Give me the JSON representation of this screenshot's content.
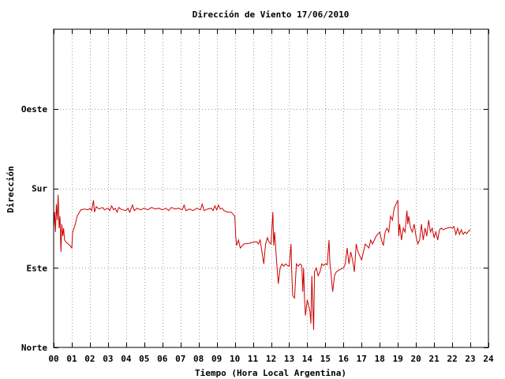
{
  "chart_data": {
    "type": "line",
    "title": "Dirección de Viento 17/06/2010",
    "xlabel": "Tiempo (Hora Local Argentina)",
    "ylabel": "Dirección",
    "xlim": [
      0,
      24
    ],
    "ylim": [
      0,
      4
    ],
    "grid": true,
    "x_ticks": [
      {
        "value": 0,
        "label": "00"
      },
      {
        "value": 1,
        "label": "01"
      },
      {
        "value": 2,
        "label": "02"
      },
      {
        "value": 3,
        "label": "03"
      },
      {
        "value": 4,
        "label": "04"
      },
      {
        "value": 5,
        "label": "05"
      },
      {
        "value": 6,
        "label": "06"
      },
      {
        "value": 7,
        "label": "07"
      },
      {
        "value": 8,
        "label": "08"
      },
      {
        "value": 9,
        "label": "09"
      },
      {
        "value": 10,
        "label": "10"
      },
      {
        "value": 11,
        "label": "11"
      },
      {
        "value": 12,
        "label": "12"
      },
      {
        "value": 13,
        "label": "13"
      },
      {
        "value": 14,
        "label": "14"
      },
      {
        "value": 15,
        "label": "15"
      },
      {
        "value": 16,
        "label": "16"
      },
      {
        "value": 17,
        "label": "17"
      },
      {
        "value": 18,
        "label": "18"
      },
      {
        "value": 19,
        "label": "19"
      },
      {
        "value": 20,
        "label": "20"
      },
      {
        "value": 21,
        "label": "21"
      },
      {
        "value": 22,
        "label": "22"
      },
      {
        "value": 23,
        "label": "23"
      },
      {
        "value": 24,
        "label": "24"
      }
    ],
    "y_ticks": [
      {
        "value": 0,
        "label": "Norte"
      },
      {
        "value": 1,
        "label": "Este"
      },
      {
        "value": 2,
        "label": "Sur"
      },
      {
        "value": 3,
        "label": "Oeste"
      }
    ],
    "series": [
      {
        "color": "#cc0000",
        "points": [
          [
            0.0,
            1.5
          ],
          [
            0.05,
            1.7
          ],
          [
            0.1,
            1.45
          ],
          [
            0.15,
            1.8
          ],
          [
            0.2,
            1.6
          ],
          [
            0.25,
            1.92
          ],
          [
            0.3,
            1.5
          ],
          [
            0.35,
            1.65
          ],
          [
            0.4,
            1.2
          ],
          [
            0.45,
            1.55
          ],
          [
            0.5,
            1.4
          ],
          [
            0.55,
            1.5
          ],
          [
            0.6,
            1.35
          ],
          [
            0.7,
            1.32
          ],
          [
            0.8,
            1.3
          ],
          [
            0.9,
            1.28
          ],
          [
            1.0,
            1.25
          ],
          [
            1.05,
            1.45
          ],
          [
            1.2,
            1.55
          ],
          [
            1.3,
            1.65
          ],
          [
            1.5,
            1.73
          ],
          [
            1.7,
            1.74
          ],
          [
            1.9,
            1.73
          ],
          [
            2.0,
            1.75
          ],
          [
            2.1,
            1.72
          ],
          [
            2.2,
            1.85
          ],
          [
            2.25,
            1.7
          ],
          [
            2.35,
            1.77
          ],
          [
            2.5,
            1.74
          ],
          [
            2.7,
            1.76
          ],
          [
            2.8,
            1.73
          ],
          [
            3.0,
            1.75
          ],
          [
            3.1,
            1.72
          ],
          [
            3.2,
            1.78
          ],
          [
            3.3,
            1.73
          ],
          [
            3.4,
            1.75
          ],
          [
            3.5,
            1.7
          ],
          [
            3.6,
            1.76
          ],
          [
            3.7,
            1.74
          ],
          [
            3.8,
            1.73
          ],
          [
            4.0,
            1.72
          ],
          [
            4.1,
            1.75
          ],
          [
            4.2,
            1.7
          ],
          [
            4.35,
            1.79
          ],
          [
            4.45,
            1.72
          ],
          [
            4.6,
            1.75
          ],
          [
            4.8,
            1.73
          ],
          [
            5.0,
            1.75
          ],
          [
            5.2,
            1.73
          ],
          [
            5.4,
            1.76
          ],
          [
            5.6,
            1.74
          ],
          [
            5.8,
            1.75
          ],
          [
            6.0,
            1.73
          ],
          [
            6.2,
            1.75
          ],
          [
            6.35,
            1.72
          ],
          [
            6.5,
            1.76
          ],
          [
            6.7,
            1.74
          ],
          [
            6.9,
            1.75
          ],
          [
            7.1,
            1.73
          ],
          [
            7.2,
            1.79
          ],
          [
            7.3,
            1.72
          ],
          [
            7.5,
            1.74
          ],
          [
            7.7,
            1.72
          ],
          [
            7.9,
            1.75
          ],
          [
            8.1,
            1.73
          ],
          [
            8.2,
            1.8
          ],
          [
            8.3,
            1.72
          ],
          [
            8.5,
            1.74
          ],
          [
            8.7,
            1.75
          ],
          [
            8.8,
            1.72
          ],
          [
            8.9,
            1.78
          ],
          [
            9.0,
            1.73
          ],
          [
            9.1,
            1.79
          ],
          [
            9.2,
            1.74
          ],
          [
            9.3,
            1.75
          ],
          [
            9.4,
            1.72
          ],
          [
            9.6,
            1.7
          ],
          [
            9.8,
            1.7
          ],
          [
            10.0,
            1.65
          ],
          [
            10.05,
            1.4
          ],
          [
            10.1,
            1.28
          ],
          [
            10.2,
            1.35
          ],
          [
            10.3,
            1.25
          ],
          [
            10.5,
            1.3
          ],
          [
            10.8,
            1.31
          ],
          [
            11.0,
            1.32
          ],
          [
            11.2,
            1.33
          ],
          [
            11.3,
            1.3
          ],
          [
            11.4,
            1.35
          ],
          [
            11.5,
            1.2
          ],
          [
            11.6,
            1.05
          ],
          [
            11.7,
            1.3
          ],
          [
            11.8,
            1.38
          ],
          [
            11.9,
            1.32
          ],
          [
            12.0,
            1.3
          ],
          [
            12.1,
            1.7
          ],
          [
            12.15,
            1.28
          ],
          [
            12.2,
            1.45
          ],
          [
            12.3,
            1.1
          ],
          [
            12.4,
            0.8
          ],
          [
            12.5,
            1.0
          ],
          [
            12.6,
            1.05
          ],
          [
            12.7,
            1.02
          ],
          [
            12.8,
            1.05
          ],
          [
            12.9,
            1.03
          ],
          [
            13.0,
            1.02
          ],
          [
            13.1,
            1.3
          ],
          [
            13.15,
            0.9
          ],
          [
            13.2,
            0.65
          ],
          [
            13.3,
            0.62
          ],
          [
            13.4,
            1.05
          ],
          [
            13.5,
            1.02
          ],
          [
            13.6,
            1.05
          ],
          [
            13.7,
            1.03
          ],
          [
            13.75,
            0.7
          ],
          [
            13.8,
            1.0
          ],
          [
            13.85,
            0.6
          ],
          [
            13.9,
            0.4
          ],
          [
            14.0,
            0.6
          ],
          [
            14.1,
            0.5
          ],
          [
            14.15,
            0.45
          ],
          [
            14.2,
            0.3
          ],
          [
            14.25,
            0.9
          ],
          [
            14.3,
            0.55
          ],
          [
            14.35,
            0.22
          ],
          [
            14.4,
            0.95
          ],
          [
            14.5,
            1.0
          ],
          [
            14.6,
            0.9
          ],
          [
            14.7,
            0.95
          ],
          [
            14.8,
            1.05
          ],
          [
            14.9,
            1.03
          ],
          [
            15.0,
            1.05
          ],
          [
            15.1,
            1.04
          ],
          [
            15.2,
            1.35
          ],
          [
            15.25,
            1.05
          ],
          [
            15.3,
            0.95
          ],
          [
            15.4,
            0.7
          ],
          [
            15.5,
            0.9
          ],
          [
            15.6,
            0.95
          ],
          [
            15.8,
            0.98
          ],
          [
            16.0,
            1.0
          ],
          [
            16.1,
            1.05
          ],
          [
            16.2,
            1.25
          ],
          [
            16.3,
            1.05
          ],
          [
            16.4,
            1.2
          ],
          [
            16.5,
            1.1
          ],
          [
            16.6,
            0.95
          ],
          [
            16.7,
            1.3
          ],
          [
            16.8,
            1.2
          ],
          [
            16.9,
            1.15
          ],
          [
            17.0,
            1.1
          ],
          [
            17.1,
            1.2
          ],
          [
            17.2,
            1.3
          ],
          [
            17.4,
            1.25
          ],
          [
            17.5,
            1.35
          ],
          [
            17.6,
            1.3
          ],
          [
            17.8,
            1.4
          ],
          [
            18.0,
            1.45
          ],
          [
            18.1,
            1.35
          ],
          [
            18.2,
            1.28
          ],
          [
            18.3,
            1.45
          ],
          [
            18.4,
            1.5
          ],
          [
            18.5,
            1.45
          ],
          [
            18.6,
            1.65
          ],
          [
            18.7,
            1.6
          ],
          [
            18.8,
            1.75
          ],
          [
            18.9,
            1.8
          ],
          [
            19.0,
            1.85
          ],
          [
            19.05,
            1.4
          ],
          [
            19.1,
            1.55
          ],
          [
            19.2,
            1.35
          ],
          [
            19.3,
            1.5
          ],
          [
            19.4,
            1.45
          ],
          [
            19.5,
            1.72
          ],
          [
            19.55,
            1.55
          ],
          [
            19.6,
            1.65
          ],
          [
            19.7,
            1.5
          ],
          [
            19.8,
            1.45
          ],
          [
            19.9,
            1.55
          ],
          [
            20.0,
            1.4
          ],
          [
            20.1,
            1.3
          ],
          [
            20.2,
            1.35
          ],
          [
            20.3,
            1.55
          ],
          [
            20.4,
            1.35
          ],
          [
            20.5,
            1.5
          ],
          [
            20.6,
            1.4
          ],
          [
            20.7,
            1.6
          ],
          [
            20.8,
            1.45
          ],
          [
            20.9,
            1.5
          ],
          [
            21.0,
            1.38
          ],
          [
            21.1,
            1.45
          ],
          [
            21.2,
            1.35
          ],
          [
            21.3,
            1.48
          ],
          [
            21.4,
            1.5
          ],
          [
            21.5,
            1.48
          ],
          [
            21.7,
            1.5
          ],
          [
            21.9,
            1.51
          ],
          [
            22.0,
            1.5
          ],
          [
            22.1,
            1.52
          ],
          [
            22.2,
            1.42
          ],
          [
            22.3,
            1.5
          ],
          [
            22.4,
            1.42
          ],
          [
            22.5,
            1.48
          ],
          [
            22.6,
            1.42
          ],
          [
            22.7,
            1.45
          ],
          [
            22.8,
            1.43
          ],
          [
            22.9,
            1.46
          ],
          [
            23.0,
            1.48
          ]
        ]
      }
    ]
  }
}
